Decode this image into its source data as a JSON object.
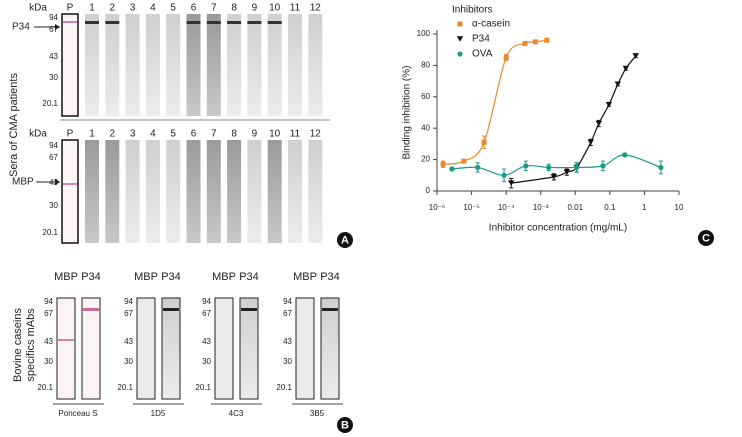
{
  "panel_a": {
    "label": "A",
    "y_label": "Sera of CMA patients",
    "top": {
      "unit": "kDa",
      "lanes": [
        "P",
        "1",
        "2",
        "3",
        "4",
        "5",
        "6",
        "7",
        "8",
        "9",
        "10",
        "11",
        "12"
      ],
      "markers": [
        "94",
        "67",
        "43",
        "30",
        "20.1"
      ],
      "arrow_label": "P34"
    },
    "bottom": {
      "unit": "kDa",
      "lanes": [
        "P",
        "1",
        "2",
        "3",
        "4",
        "5",
        "6",
        "7",
        "8",
        "9",
        "10",
        "11",
        "12"
      ],
      "markers": [
        "94",
        "67",
        "43",
        "30",
        "20.1"
      ],
      "arrow_label": "MBP"
    }
  },
  "panel_b": {
    "label": "B",
    "y_label": [
      "Bovine caseins",
      "specifics mAbs"
    ],
    "groups": [
      {
        "lanes": [
          "MBP",
          "P34"
        ],
        "markers": [
          "94",
          "67",
          "43",
          "30",
          "20.1"
        ],
        "caption": "Ponceau S"
      },
      {
        "lanes": [
          "MBP",
          "P34"
        ],
        "markers": [
          "94",
          "67",
          "43",
          "30",
          "20.1"
        ],
        "caption": "1D5"
      },
      {
        "lanes": [
          "MBP",
          "P34"
        ],
        "markers": [
          "94",
          "67",
          "43",
          "30",
          "20.1"
        ],
        "caption": "4C3"
      },
      {
        "lanes": [
          "MBP",
          "P34"
        ],
        "markers": [
          "94",
          "67",
          "43",
          "30",
          "20.1"
        ],
        "caption": "3B5"
      }
    ]
  },
  "chart_data": {
    "type": "scatter",
    "panel_label": "C",
    "xlabel": "Inhibitor concentration (mg/mL)",
    "ylabel": "Binding inhibition (%)",
    "legend_title": "Inhibitors",
    "legend": "upper left",
    "x_scale": "log",
    "xlim": [
      1e-06,
      10
    ],
    "xticks": [
      {
        "value": 1e-06,
        "label": "10⁻⁶"
      },
      {
        "value": 1e-05,
        "label": "10⁻⁵"
      },
      {
        "value": 0.0001,
        "label": "10⁻⁴"
      },
      {
        "value": 0.001,
        "label": "10⁻³"
      },
      0.01,
      0.1,
      1,
      10
    ],
    "ylim": [
      0,
      100
    ],
    "yticks": [
      0,
      20,
      40,
      60,
      80,
      100
    ],
    "series": [
      {
        "name": "α-casein",
        "color": "#e8892a",
        "marker": "square",
        "x": [
          1.5e-06,
          6e-06,
          2.3e-05,
          0.0001,
          0.00035,
          0.0007,
          0.0015
        ],
        "values": [
          17,
          19,
          31,
          85,
          94,
          95,
          96
        ],
        "errors": [
          2,
          1,
          4,
          2,
          1,
          1,
          1
        ]
      },
      {
        "name": "P34",
        "color": "#111111",
        "marker": "triangle-down",
        "x": [
          0.00014,
          0.0024,
          0.0057,
          0.011,
          0.028,
          0.048,
          0.094,
          0.17,
          0.29,
          0.56
        ],
        "values": [
          5,
          9,
          12,
          15,
          31,
          43,
          55,
          68,
          78,
          86
        ],
        "errors": [
          3,
          2,
          2,
          3,
          2,
          2,
          1,
          1,
          1,
          1
        ]
      },
      {
        "name": "OVA",
        "color": "#1a9a8a",
        "marker": "circle",
        "x": [
          2.7e-06,
          1.5e-05,
          8.7e-05,
          0.00037,
          0.0017,
          0.011,
          0.063,
          0.27,
          3.0
        ],
        "values": [
          14,
          15,
          10,
          16,
          15,
          15,
          16,
          23,
          15
        ],
        "errors": [
          1,
          3,
          4,
          3,
          2,
          3,
          3,
          1,
          4
        ]
      }
    ]
  }
}
